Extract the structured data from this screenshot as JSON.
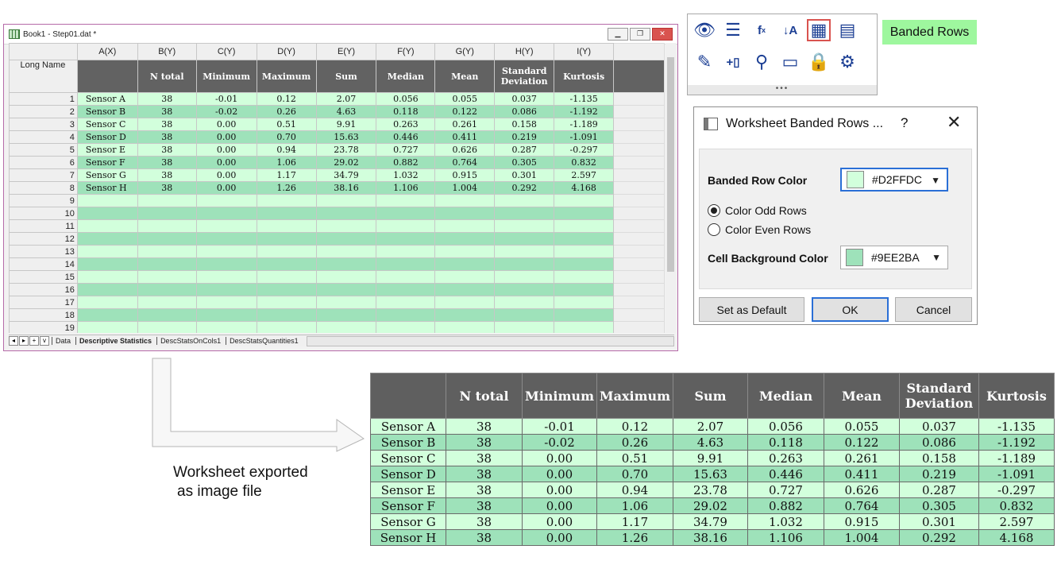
{
  "workbook": {
    "title": "Book1 - Step01.dat *",
    "col_letters": [
      "A(X)",
      "B(Y)",
      "C(Y)",
      "D(Y)",
      "E(Y)",
      "F(Y)",
      "G(Y)",
      "H(Y)",
      "I(Y)"
    ],
    "long_name_label": "Long Name",
    "long_names": [
      "",
      "N total",
      "Minimum",
      "Maximum",
      "Sum",
      "Median",
      "Mean",
      "Standard Deviation",
      "Kurtosis"
    ],
    "rows": [
      [
        "Sensor A",
        "38",
        "-0.01",
        "0.12",
        "2.07",
        "0.056",
        "0.055",
        "0.037",
        "-1.135"
      ],
      [
        "Sensor B",
        "38",
        "-0.02",
        "0.26",
        "4.63",
        "0.118",
        "0.122",
        "0.086",
        "-1.192"
      ],
      [
        "Sensor C",
        "38",
        "0.00",
        "0.51",
        "9.91",
        "0.263",
        "0.261",
        "0.158",
        "-1.189"
      ],
      [
        "Sensor D",
        "38",
        "0.00",
        "0.70",
        "15.63",
        "0.446",
        "0.411",
        "0.219",
        "-1.091"
      ],
      [
        "Sensor E",
        "38",
        "0.00",
        "0.94",
        "23.78",
        "0.727",
        "0.626",
        "0.287",
        "-0.297"
      ],
      [
        "Sensor F",
        "38",
        "0.00",
        "1.06",
        "29.02",
        "0.882",
        "0.764",
        "0.305",
        "0.832"
      ],
      [
        "Sensor G",
        "38",
        "0.00",
        "1.17",
        "34.79",
        "1.032",
        "0.915",
        "0.301",
        "2.597"
      ],
      [
        "Sensor H",
        "38",
        "0.00",
        "1.26",
        "38.16",
        "1.106",
        "1.004",
        "0.292",
        "4.168"
      ]
    ],
    "empty_row_numbers": [
      "9",
      "10",
      "11",
      "12",
      "13",
      "14",
      "15",
      "16",
      "17",
      "18",
      "19"
    ],
    "sheet_tabs": [
      "Data",
      "Descriptive Statistics",
      "DescStatsOnCols1",
      "DescStatsQuantities1"
    ],
    "active_tab": "Descriptive Statistics"
  },
  "toolbar": {
    "icons": [
      "show-hide-icon",
      "list-icon",
      "formula-icon",
      "sort-icon",
      "banded-rows-icon",
      "table-format-icon",
      "eraser-icon",
      "add-column-icon",
      "search-icon",
      "comment-icon",
      "lock-icon",
      "settings-icon"
    ],
    "callout": "Banded Rows"
  },
  "dialog": {
    "title": "Worksheet Banded Rows ...",
    "help": "?",
    "close": "✕",
    "banded_row_color_label": "Banded Row Color",
    "banded_row_color_value": "#D2FFDC",
    "radio_odd": "Color Odd Rows",
    "radio_even": "Color Even Rows",
    "cell_bg_color_label": "Cell Background Color",
    "cell_bg_color_value": "#9EE2BA",
    "set_default": "Set as Default",
    "ok": "OK",
    "cancel": "Cancel"
  },
  "caption": {
    "line1": "Worksheet exported",
    "line2": "as image file"
  },
  "colors": {
    "banded": "#D2FFDC",
    "background": "#9EE2BA",
    "header": "#626262"
  }
}
